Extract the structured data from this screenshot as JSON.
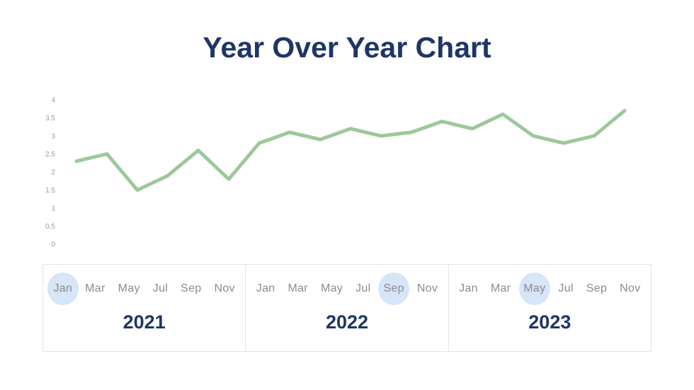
{
  "title": "Year Over Year Chart",
  "colors": {
    "title_navy": "#1e3566",
    "line_green": "#9cc89a",
    "month_gray": "#8b8b8b",
    "axis_tick_gray": "#9b9b9b",
    "highlight_blue": "#d6e5f8",
    "box_border_gray": "#e4e4e4"
  },
  "chart_data": {
    "type": "line",
    "title": "Year Over Year Chart",
    "series_span_years": [
      "2021",
      "2022",
      "2023"
    ],
    "values": [
      2.3,
      2.5,
      1.5,
      1.9,
      2.6,
      1.8,
      2.8,
      3.1,
      2.9,
      3.2,
      3.0,
      3.1,
      3.4,
      3.2,
      3.6,
      3.0,
      2.8,
      3.0,
      3.7
    ],
    "y_ticks": [
      4,
      3.5,
      3,
      2.5,
      2,
      1.5,
      1,
      0.5,
      0
    ],
    "ylim": [
      0,
      4
    ],
    "grid": false,
    "legend": false,
    "line_color": "#9cc89a"
  },
  "years": [
    {
      "label": "2021",
      "months": [
        {
          "label": "Jan",
          "highlighted": true
        },
        {
          "label": "Mar",
          "highlighted": false
        },
        {
          "label": "May",
          "highlighted": false
        },
        {
          "label": "Jul",
          "highlighted": false
        },
        {
          "label": "Sep",
          "highlighted": false
        },
        {
          "label": "Nov",
          "highlighted": false
        }
      ]
    },
    {
      "label": "2022",
      "months": [
        {
          "label": "Jan",
          "highlighted": false
        },
        {
          "label": "Mar",
          "highlighted": false
        },
        {
          "label": "May",
          "highlighted": false
        },
        {
          "label": "Jul",
          "highlighted": false
        },
        {
          "label": "Sep",
          "highlighted": true
        },
        {
          "label": "Nov",
          "highlighted": false
        }
      ]
    },
    {
      "label": "2023",
      "months": [
        {
          "label": "Jan",
          "highlighted": false
        },
        {
          "label": "Mar",
          "highlighted": false
        },
        {
          "label": "May",
          "highlighted": true
        },
        {
          "label": "Jul",
          "highlighted": false
        },
        {
          "label": "Sep",
          "highlighted": false
        },
        {
          "label": "Nov",
          "highlighted": false
        }
      ]
    }
  ]
}
